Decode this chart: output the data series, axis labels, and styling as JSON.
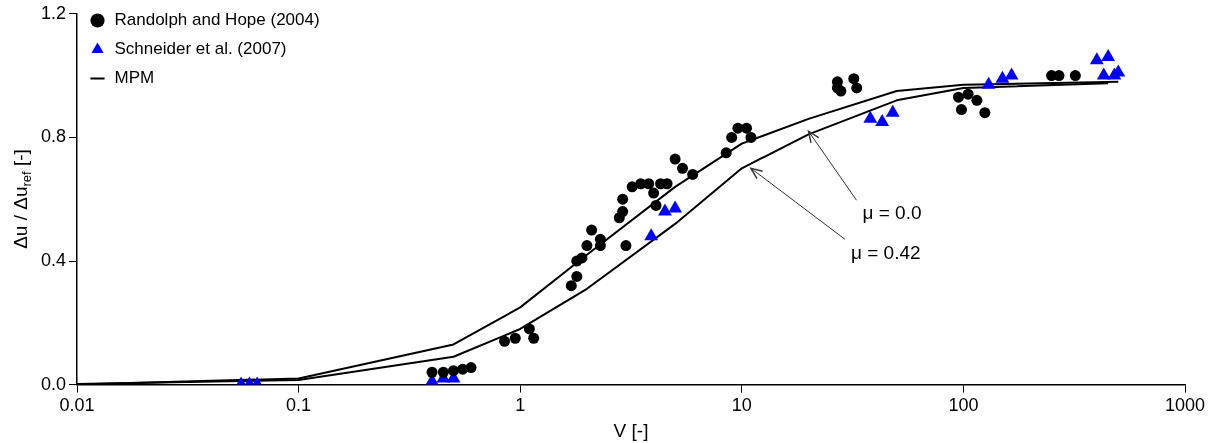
{
  "chart_data": {
    "type": "scatter",
    "xlabel": "V [-]",
    "ylabel": "Δu / Δu$_{ref}$ [-]",
    "log": "x",
    "xlim": [
      0.01,
      1000
    ],
    "xticks": [
      0.01,
      0.1,
      1,
      10,
      100,
      1000
    ],
    "ylim": [
      0,
      1.2
    ],
    "yticks": [
      {
        "value": 0,
        "label": "0.0"
      },
      {
        "value": 0.4,
        "label": "0.4"
      },
      {
        "value": 0.8,
        "label": "0.8"
      },
      {
        "value": 1.2,
        "label": "1.2"
      }
    ],
    "grid": false,
    "legend": "top left",
    "annotations": [
      {
        "text": "μ = 0.0",
        "x": 20,
        "y": 0.82
      },
      {
        "text": "μ = 0.42",
        "x": 11,
        "y": 0.7
      }
    ],
    "series": [
      {
        "name": "Randolph and Hope (2004)",
        "marker": "circle",
        "color": "#000000",
        "x": [
          0.4,
          0.45,
          0.5,
          0.55,
          0.6,
          0.85,
          0.95,
          1.1,
          1.15,
          1.7,
          1.8,
          1.8,
          1.9,
          2.0,
          2.1,
          2.3,
          2.3,
          2.8,
          2.9,
          3.0,
          2.9,
          3.2,
          3.5,
          3.8,
          4.0,
          4.1,
          4.3,
          4.6,
          5.0,
          5.4,
          6.0,
          8.5,
          9.0,
          9.6,
          10.5,
          11,
          27,
          27,
          28,
          32,
          33,
          95,
          98,
          105,
          115,
          125,
          250,
          270,
          320
        ],
        "values": [
          0.04,
          0.04,
          0.045,
          0.05,
          0.055,
          0.14,
          0.15,
          0.18,
          0.15,
          0.32,
          0.35,
          0.4,
          0.41,
          0.45,
          0.5,
          0.45,
          0.47,
          0.54,
          0.56,
          0.45,
          0.6,
          0.64,
          0.65,
          0.65,
          0.62,
          0.58,
          0.65,
          0.65,
          0.73,
          0.7,
          0.68,
          0.75,
          0.8,
          0.83,
          0.83,
          0.8,
          0.98,
          0.96,
          0.95,
          0.99,
          0.96,
          0.93,
          0.89,
          0.94,
          0.92,
          0.88,
          1.0,
          1.0,
          1.0
        ]
      },
      {
        "name": "Schneider et al. (2007)",
        "marker": "triangle",
        "color": "#0000ff",
        "x": [
          0.055,
          0.06,
          0.065,
          0.4,
          0.45,
          0.5,
          3.9,
          4.5,
          5.0,
          38,
          43,
          48,
          130,
          150,
          165,
          400,
          450,
          430,
          480,
          500
        ],
        "values": [
          0,
          0,
          0,
          0.01,
          0.02,
          0.02,
          0.48,
          0.56,
          0.57,
          0.86,
          0.85,
          0.88,
          0.97,
          0.99,
          1.0,
          1.05,
          1.06,
          1.0,
          1.0,
          1.01
        ]
      },
      {
        "name": "MPM",
        "type": "line",
        "marker": "none",
        "color": "#000000",
        "x": [
          0.01,
          0.1,
          0.5,
          1,
          2,
          5,
          10,
          20,
          50,
          100,
          500
        ],
        "values": [
          0,
          0.02,
          0.13,
          0.25,
          0.42,
          0.64,
          0.78,
          0.86,
          0.95,
          0.97,
          0.98
        ]
      },
      {
        "type": "line",
        "marker": "none",
        "color": "#000000",
        "x": [
          0.01,
          0.1,
          0.5,
          1,
          2,
          5,
          10,
          20,
          50,
          100,
          450
        ],
        "values": [
          0.002,
          0.015,
          0.09,
          0.18,
          0.31,
          0.52,
          0.7,
          0.81,
          0.92,
          0.96,
          0.975
        ]
      }
    ]
  }
}
